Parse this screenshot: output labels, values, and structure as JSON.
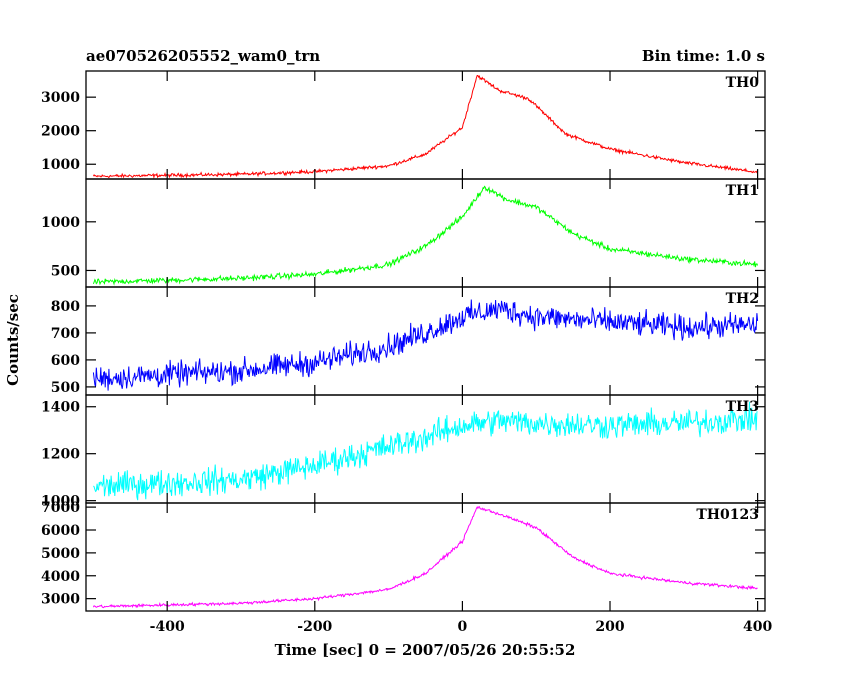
{
  "chart_data": {
    "type": "line",
    "title_left": "ae070526205552_wam0_trn",
    "title_right": "Bin time: 1.0 s",
    "xlabel": "Time [sec] 0 = 2007/05/26 20:55:52",
    "ylabel": "Counts/sec",
    "xlim": [
      -510,
      410
    ],
    "xticks": [
      -400,
      -200,
      0,
      200,
      400
    ],
    "panels": [
      {
        "name": "TH0",
        "color": "#ff0000",
        "ylim": [
          560,
          3780
        ],
        "yticks": [
          1000,
          2000,
          3000
        ],
        "noise": 35,
        "profile": [
          [
            -500,
            640
          ],
          [
            -300,
            700
          ],
          [
            -200,
            780
          ],
          [
            -100,
            950
          ],
          [
            -50,
            1300
          ],
          [
            0,
            2100
          ],
          [
            20,
            3650
          ],
          [
            50,
            3200
          ],
          [
            90,
            2950
          ],
          [
            140,
            1900
          ],
          [
            200,
            1450
          ],
          [
            300,
            1050
          ],
          [
            400,
            760
          ]
        ]
      },
      {
        "name": "TH1",
        "color": "#00ff00",
        "ylim": [
          330,
          1440
        ],
        "yticks": [
          500,
          1000
        ],
        "noise": 20,
        "profile": [
          [
            -500,
            380
          ],
          [
            -300,
            420
          ],
          [
            -200,
            460
          ],
          [
            -100,
            560
          ],
          [
            -50,
            750
          ],
          [
            0,
            1050
          ],
          [
            30,
            1360
          ],
          [
            60,
            1230
          ],
          [
            100,
            1150
          ],
          [
            150,
            880
          ],
          [
            200,
            720
          ],
          [
            300,
            620
          ],
          [
            400,
            560
          ]
        ]
      },
      {
        "name": "TH2",
        "color": "#0000ff",
        "ylim": [
          470,
          870
        ],
        "yticks": [
          500,
          600,
          700,
          800
        ],
        "noise": 32,
        "profile": [
          [
            -500,
            530
          ],
          [
            -300,
            560
          ],
          [
            -200,
            590
          ],
          [
            -100,
            650
          ],
          [
            -50,
            700
          ],
          [
            0,
            760
          ],
          [
            50,
            790
          ],
          [
            100,
            760
          ],
          [
            200,
            740
          ],
          [
            300,
            720
          ],
          [
            400,
            730
          ]
        ]
      },
      {
        "name": "TH3",
        "color": "#00ffff",
        "ylim": [
          990,
          1450
        ],
        "yticks": [
          1000,
          1200,
          1400
        ],
        "noise": 40,
        "profile": [
          [
            -500,
            1060
          ],
          [
            -300,
            1090
          ],
          [
            -200,
            1150
          ],
          [
            -100,
            1230
          ],
          [
            -50,
            1270
          ],
          [
            0,
            1320
          ],
          [
            50,
            1340
          ],
          [
            100,
            1330
          ],
          [
            200,
            1320
          ],
          [
            300,
            1330
          ],
          [
            400,
            1350
          ]
        ]
      },
      {
        "name": "TH0123",
        "color": "#ff00ff",
        "ylim": [
          2460,
          7180
        ],
        "yticks": [
          3000,
          4000,
          5000,
          6000,
          7000
        ],
        "noise": 45,
        "profile": [
          [
            -500,
            2650
          ],
          [
            -300,
            2800
          ],
          [
            -200,
            3000
          ],
          [
            -100,
            3400
          ],
          [
            -50,
            4100
          ],
          [
            0,
            5500
          ],
          [
            20,
            7000
          ],
          [
            50,
            6700
          ],
          [
            100,
            6100
          ],
          [
            150,
            4800
          ],
          [
            200,
            4100
          ],
          [
            300,
            3700
          ],
          [
            400,
            3450
          ]
        ]
      }
    ]
  }
}
